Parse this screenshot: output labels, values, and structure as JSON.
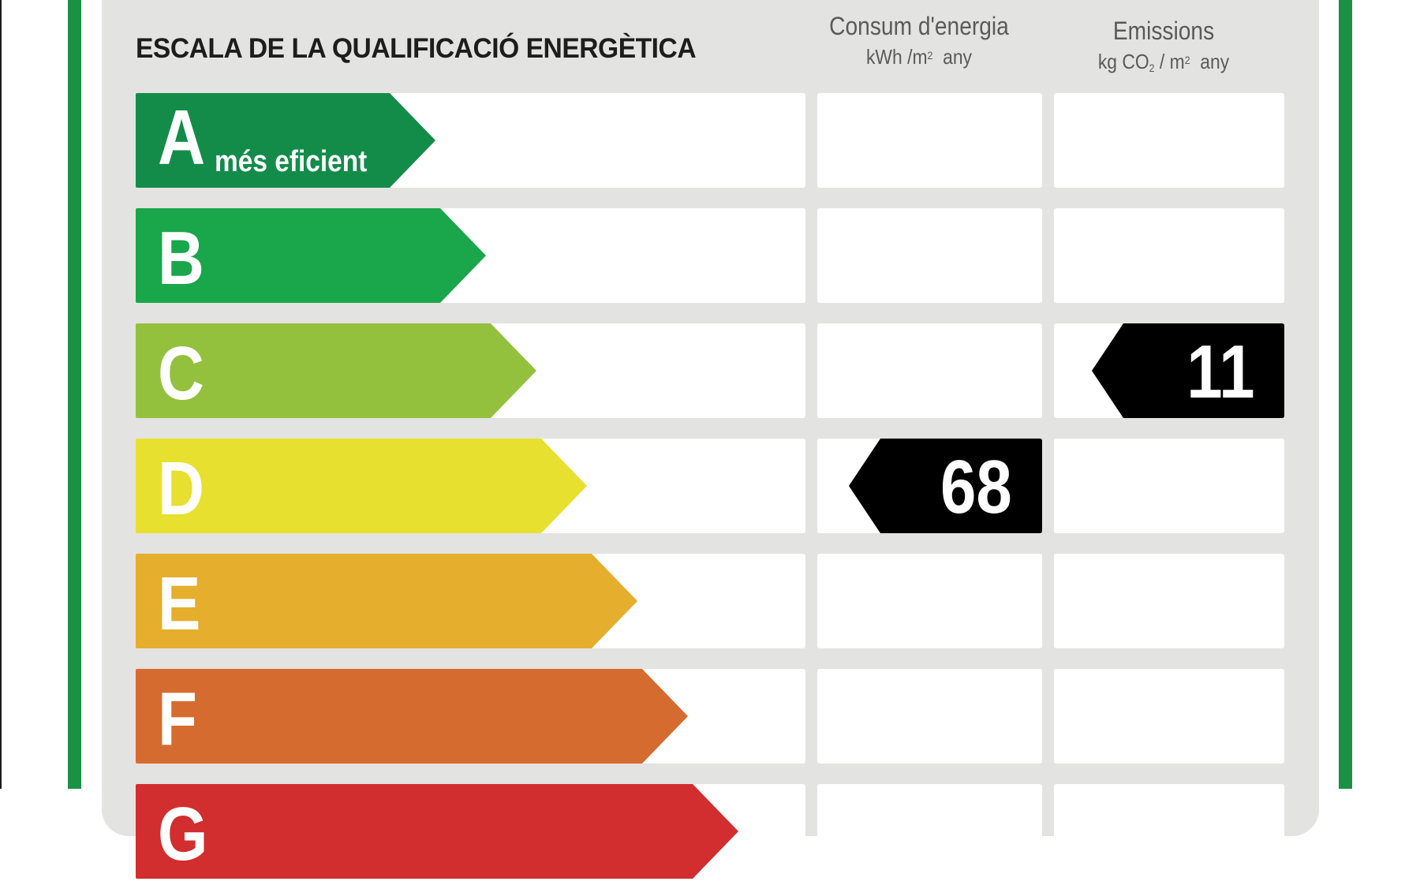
{
  "title": "ESCALA DE LA QUALIFICACIÓ ENERGÈTICA",
  "columns": {
    "energy": {
      "label": "Consum d'energia",
      "unit_main": "kWh /m",
      "unit_sup": "2",
      "unit_tail": "any"
    },
    "emissions": {
      "label": "Emissions",
      "unit_a": "kg CO",
      "unit_sub": "2",
      "unit_b": " / m",
      "unit_sup": "2",
      "unit_tail": "any"
    }
  },
  "bands": [
    {
      "letter": "A",
      "sublabel": "més eficient",
      "color": "#138c4a"
    },
    {
      "letter": "B",
      "sublabel": "",
      "color": "#1aa64b"
    },
    {
      "letter": "C",
      "sublabel": "",
      "color": "#93c13e"
    },
    {
      "letter": "D",
      "sublabel": "",
      "color": "#e7e02f"
    },
    {
      "letter": "E",
      "sublabel": "",
      "color": "#e5ae2c"
    },
    {
      "letter": "F",
      "sublabel": "",
      "color": "#d66b30"
    },
    {
      "letter": "G",
      "sublabel": "",
      "color": "#d22d2f"
    }
  ],
  "ratings": {
    "energy": {
      "value": "68",
      "band": "D"
    },
    "emissions": {
      "value": "11",
      "band": "C"
    }
  },
  "colors": {
    "frame": "#1a9145",
    "panel": "#e3e3e2",
    "indicator": "#000000"
  }
}
